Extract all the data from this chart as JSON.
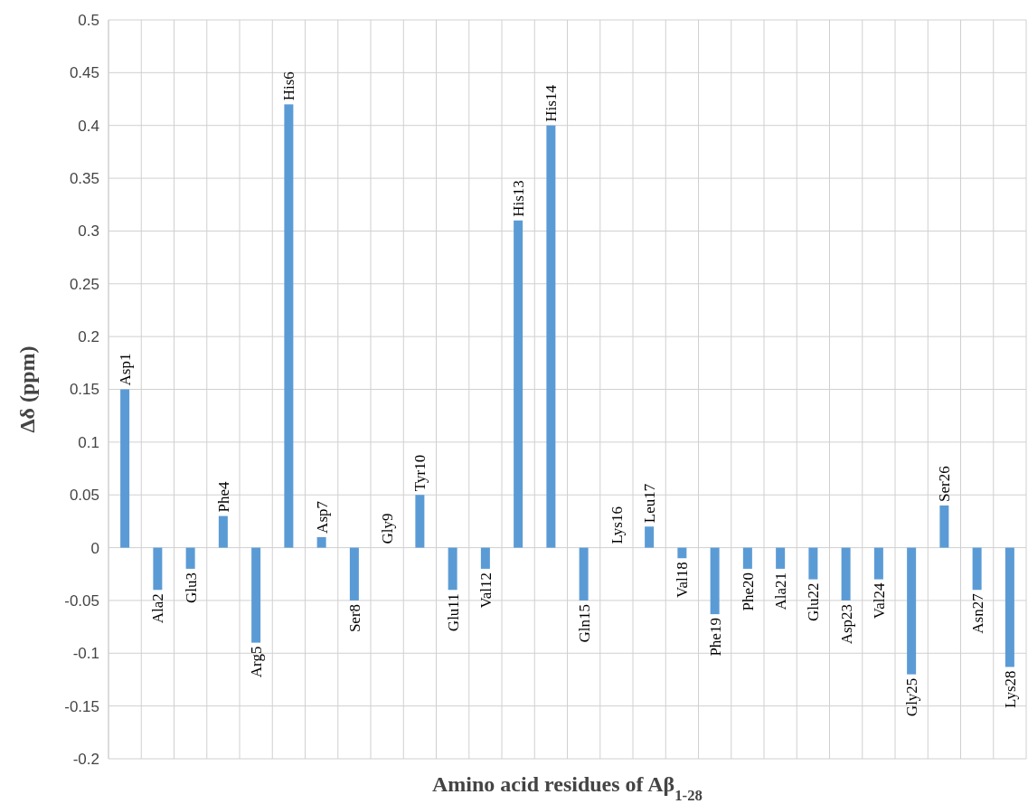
{
  "chart_data": {
    "type": "bar",
    "xlabel": "Amino acid residues of Aβ$_{1-28}$",
    "ylabel": "Δδ (ppm)",
    "categories": [
      "Asp1",
      "Ala2",
      "Glu3",
      "Phe4",
      "Arg5",
      "His6",
      "Asp7",
      "Ser8",
      "Gly9",
      "Tyr10",
      "Glu11",
      "Val12",
      "His13",
      "His14",
      "Gln15",
      "Lys16",
      "Leu17",
      "Val18",
      "Phe19",
      "Phe20",
      "Ala21",
      "Glu22",
      "Asp23",
      "Val24",
      "Gly25",
      "Ser26",
      "Asn27",
      "Lys28"
    ],
    "values": [
      0.15,
      -0.04,
      -0.02,
      0.03,
      -0.09,
      0.42,
      0.01,
      -0.05,
      0,
      0.05,
      -0.04,
      -0.02,
      0.31,
      0.4,
      -0.05,
      0,
      0.02,
      -0.01,
      -0.063,
      -0.02,
      -0.02,
      -0.03,
      -0.05,
      -0.03,
      -0.12,
      0.04,
      -0.04,
      -0.113
    ],
    "color": "#5b9bd5",
    "ylim": [
      -0.2,
      0.5
    ],
    "yticks": [
      -0.2,
      -0.15,
      -0.1,
      -0.05,
      0,
      0.05,
      0.1,
      0.15,
      0.2,
      0.25,
      0.3,
      0.35,
      0.4,
      0.45,
      0.5
    ],
    "grid": true
  }
}
